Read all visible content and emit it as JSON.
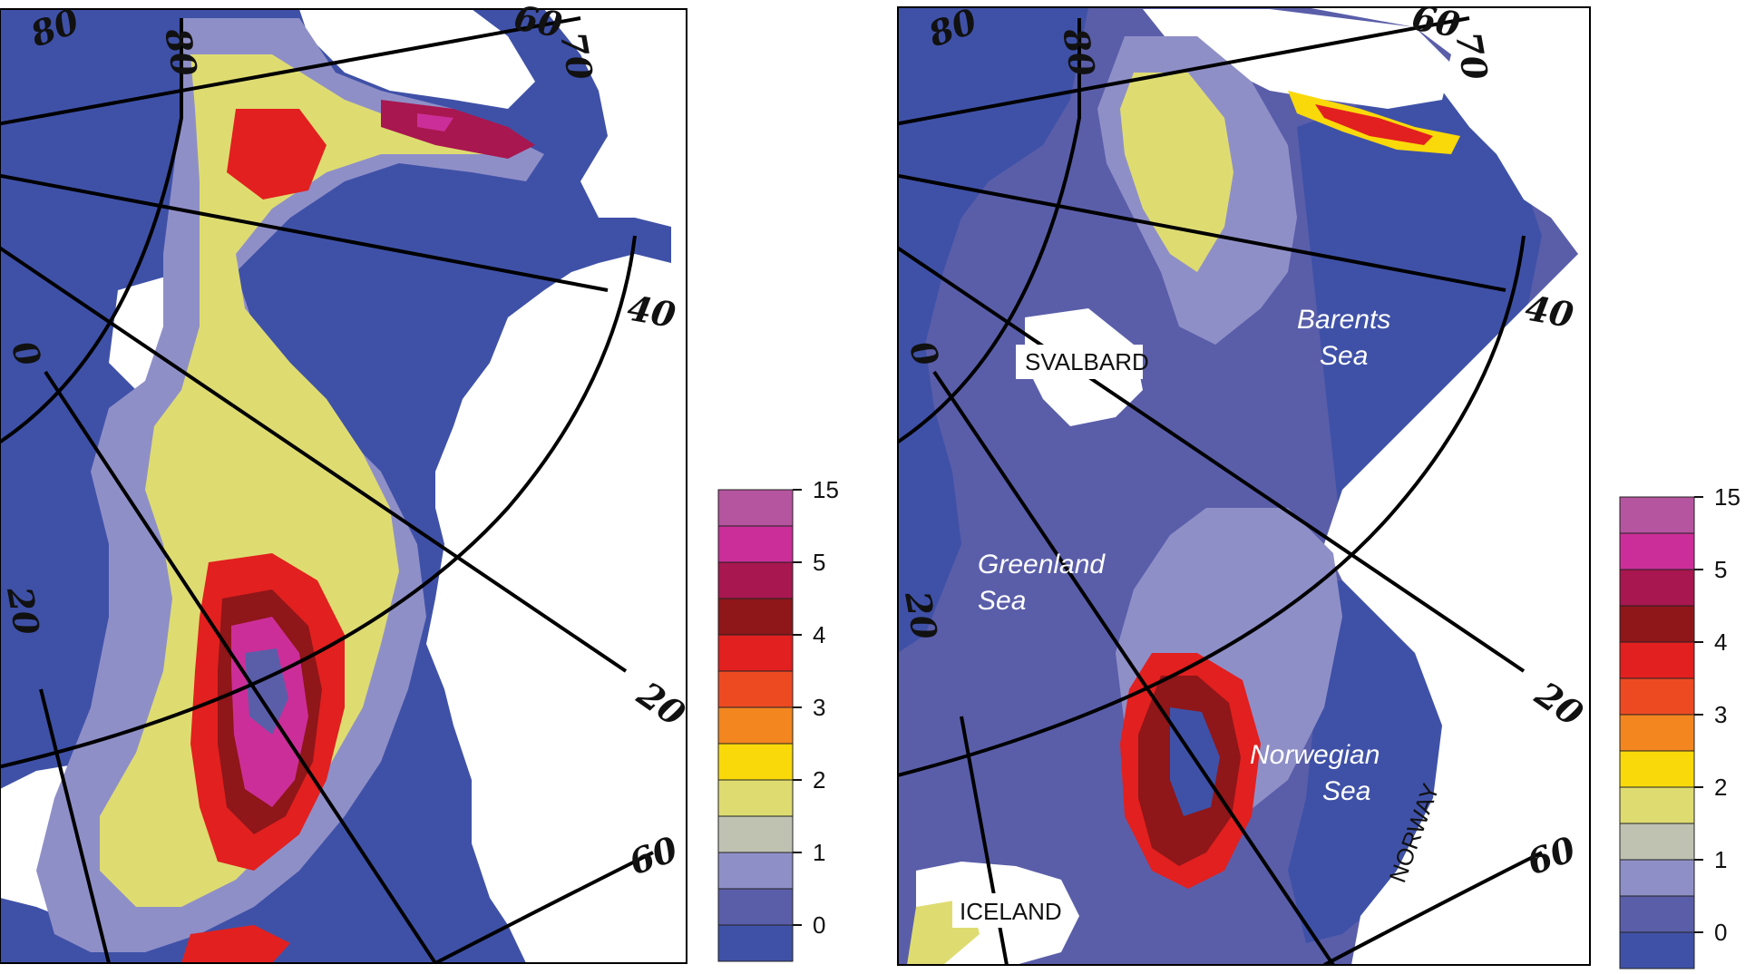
{
  "maps": [
    {
      "id": "left",
      "graticule_labels": [
        "80",
        "60",
        "70",
        "80",
        "40",
        "0",
        "20",
        "20",
        "60"
      ],
      "place_labels": [],
      "boxed_labels": []
    },
    {
      "id": "right",
      "graticule_labels": [
        "80",
        "60",
        "70",
        "80",
        "40",
        "0",
        "20",
        "20",
        "60"
      ],
      "place_labels": [
        "Barents",
        "Sea",
        "Greenland",
        "Sea",
        "Norwegian",
        "Sea"
      ],
      "boxed_labels": [
        "SVALBARD",
        "ICELAND"
      ],
      "rotated_label": "NORWAY"
    }
  ],
  "colorbar": {
    "tick_labels": [
      "15",
      "5",
      "4",
      "3",
      "2",
      "1",
      "0"
    ],
    "colors": [
      "#b5549f",
      "#cc2e99",
      "#a8174f",
      "#8f1619",
      "#e2201f",
      "#ee4a22",
      "#f3861f",
      "#fad90a",
      "#dedc71",
      "#c0c2b1",
      "#8f8fc8",
      "#5a5ea9",
      "#3f51a7"
    ]
  },
  "colors": {
    "ocean_deep": "#3f51a7",
    "ocean_low": "#5a5ea9",
    "land": "#ffffff"
  }
}
